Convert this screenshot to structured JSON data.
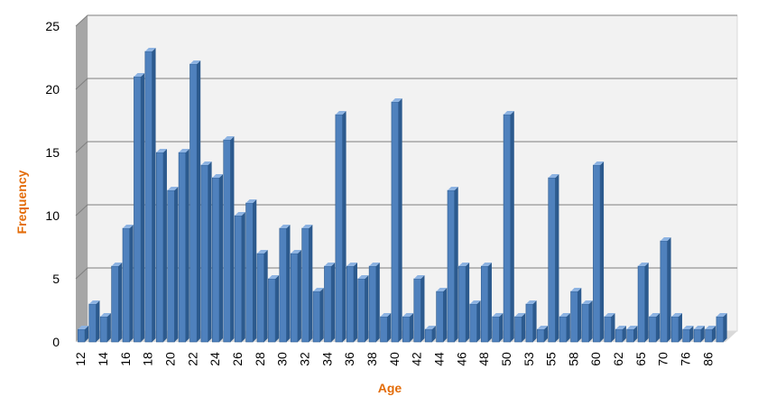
{
  "chart_data": {
    "type": "bar",
    "title": "",
    "xlabel": "Age",
    "ylabel": "Frequency",
    "ylim": [
      0,
      25
    ],
    "yticks": [
      0,
      5,
      10,
      15,
      20,
      25
    ],
    "grid": true,
    "legend": "none",
    "colors": {
      "bar": "#4F81BD",
      "bar_dark": "#2C5A8E",
      "bar_light": "#8DB3E2",
      "axis_title": "#E36C09",
      "gridline": "#7F7F7F"
    },
    "categories": [
      "12",
      "13",
      "14",
      "15",
      "16",
      "17",
      "18",
      "19",
      "20",
      "21",
      "22",
      "23",
      "24",
      "25",
      "26",
      "27",
      "28",
      "29",
      "30",
      "31",
      "32",
      "33",
      "34",
      "35",
      "36",
      "37",
      "38",
      "39",
      "40",
      "41",
      "42",
      "43",
      "44",
      "45",
      "46",
      "47",
      "48",
      "49",
      "50",
      "51",
      "53",
      "54",
      "55",
      "57",
      "58",
      "59",
      "60",
      "61",
      "62",
      "64",
      "65",
      "69",
      "70",
      "74",
      "76",
      "80",
      "86",
      "90"
    ],
    "values": [
      1,
      3,
      2,
      6,
      9,
      21,
      23,
      15,
      12,
      15,
      22,
      14,
      13,
      16,
      10,
      11,
      7,
      5,
      9,
      7,
      9,
      4,
      6,
      18,
      6,
      5,
      6,
      2,
      19,
      2,
      5,
      1,
      4,
      12,
      6,
      3,
      6,
      2,
      18,
      2,
      3,
      1,
      13,
      2,
      4,
      3,
      14,
      2,
      1,
      1,
      6,
      2,
      8,
      2,
      1,
      1,
      1,
      2
    ],
    "tick_labels": [
      "12",
      "",
      "14",
      "",
      "16",
      "",
      "18",
      "",
      "20",
      "",
      "22",
      "",
      "24",
      "",
      "26",
      "",
      "28",
      "",
      "30",
      "",
      "32",
      "",
      "34",
      "",
      "36",
      "",
      "38",
      "",
      "40",
      "",
      "42",
      "",
      "44",
      "",
      "46",
      "",
      "48",
      "",
      "50",
      "",
      "53",
      "",
      "55",
      "",
      "58",
      "",
      "60",
      "",
      "62",
      "",
      "65",
      "",
      "70",
      "",
      "76",
      "",
      "86",
      ""
    ]
  }
}
